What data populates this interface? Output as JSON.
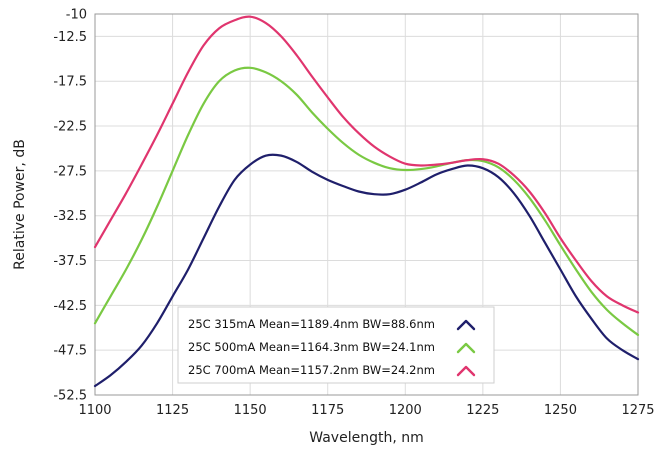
{
  "chart_data": {
    "type": "line",
    "xlabel": "Wavelength, nm",
    "ylabel": "Relative Power, dB",
    "xlim": [
      1100,
      1275
    ],
    "ylim": [
      -52.5,
      -10
    ],
    "xticks": [
      1100,
      1125,
      1150,
      1175,
      1200,
      1225,
      1250,
      1275
    ],
    "yticks": [
      -10,
      -12.5,
      -17.5,
      -22.5,
      -27.5,
      -32.5,
      -37.5,
      -42.5,
      -47.5,
      -52.5
    ],
    "grid": true,
    "legend_position": "bottom-center",
    "series": [
      {
        "name": "25C 315mA Mean=1189.4nm BW=88.6nm",
        "color": "#1f1f6b",
        "x": [
          1100,
          1105,
          1110,
          1115,
          1120,
          1125,
          1130,
          1135,
          1140,
          1145,
          1150,
          1155,
          1160,
          1165,
          1170,
          1175,
          1180,
          1185,
          1190,
          1195,
          1200,
          1205,
          1210,
          1215,
          1220,
          1225,
          1230,
          1235,
          1240,
          1245,
          1250,
          1255,
          1260,
          1265,
          1270,
          1275
        ],
        "y": [
          -51.5,
          -50.3,
          -48.8,
          -47.0,
          -44.5,
          -41.5,
          -38.5,
          -35.0,
          -31.5,
          -28.5,
          -26.8,
          -25.8,
          -25.8,
          -26.5,
          -27.6,
          -28.5,
          -29.2,
          -29.8,
          -30.1,
          -30.1,
          -29.6,
          -28.8,
          -27.9,
          -27.3,
          -26.9,
          -27.2,
          -28.2,
          -30.0,
          -32.5,
          -35.5,
          -38.5,
          -41.5,
          -44.0,
          -46.2,
          -47.5,
          -48.5
        ]
      },
      {
        "name": "25C 500mA Mean=1164.3nm BW=24.1nm",
        "color": "#7ac943",
        "x": [
          1100,
          1105,
          1110,
          1115,
          1120,
          1125,
          1130,
          1135,
          1140,
          1145,
          1150,
          1155,
          1160,
          1165,
          1170,
          1175,
          1180,
          1185,
          1190,
          1195,
          1200,
          1205,
          1210,
          1215,
          1220,
          1225,
          1230,
          1235,
          1240,
          1245,
          1250,
          1255,
          1260,
          1265,
          1270,
          1275
        ],
        "y": [
          -44.5,
          -41.5,
          -38.5,
          -35.2,
          -31.5,
          -27.5,
          -23.5,
          -20.0,
          -17.5,
          -16.3,
          -16.0,
          -16.5,
          -17.5,
          -19.0,
          -21.0,
          -22.8,
          -24.4,
          -25.7,
          -26.6,
          -27.2,
          -27.4,
          -27.3,
          -27.0,
          -26.6,
          -26.3,
          -26.4,
          -27.1,
          -28.5,
          -30.5,
          -33.0,
          -35.8,
          -38.5,
          -41.0,
          -43.0,
          -44.5,
          -45.8
        ]
      },
      {
        "name": "25C 700mA Mean=1157.2nm BW=24.2nm",
        "color": "#e0356e",
        "x": [
          1100,
          1105,
          1110,
          1115,
          1120,
          1125,
          1130,
          1135,
          1140,
          1145,
          1150,
          1155,
          1160,
          1165,
          1170,
          1175,
          1180,
          1185,
          1190,
          1195,
          1200,
          1205,
          1210,
          1215,
          1220,
          1225,
          1230,
          1235,
          1240,
          1245,
          1250,
          1255,
          1260,
          1265,
          1270,
          1275
        ],
        "y": [
          -36.0,
          -33.0,
          -30.0,
          -26.8,
          -23.5,
          -20.0,
          -16.5,
          -13.5,
          -11.6,
          -10.7,
          -10.3,
          -11.0,
          -12.5,
          -14.6,
          -17.0,
          -19.3,
          -21.5,
          -23.3,
          -24.8,
          -25.9,
          -26.7,
          -26.9,
          -26.8,
          -26.6,
          -26.3,
          -26.2,
          -26.7,
          -28.0,
          -29.8,
          -32.2,
          -35.0,
          -37.5,
          -39.8,
          -41.5,
          -42.5,
          -43.3
        ]
      }
    ]
  }
}
